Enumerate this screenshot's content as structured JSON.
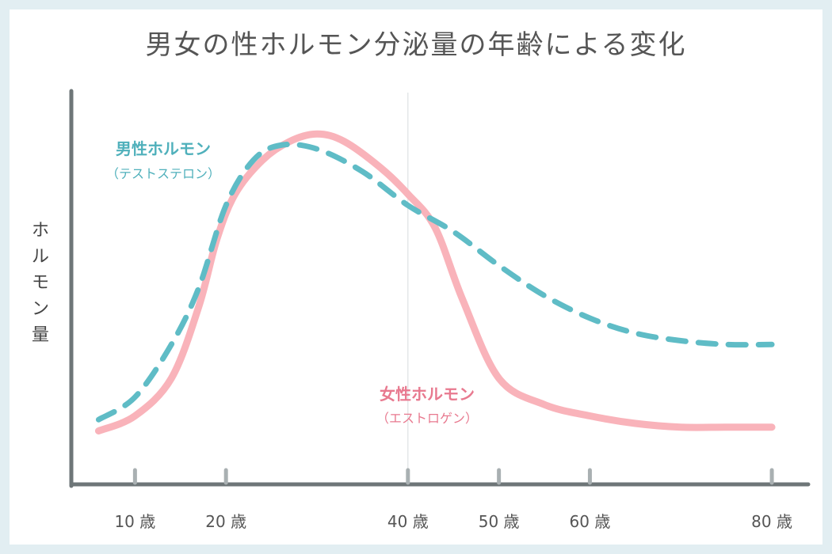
{
  "colors": {
    "background": "#e2eef2",
    "axis": "#6e7678",
    "tick": "#a9b0b2",
    "male": "#5fbcc6",
    "female": "#f9b3ba",
    "female_label": "#e8798f",
    "male_label": "#4fb0bb",
    "guide": "#d8dcdd"
  },
  "chart_data": {
    "type": "line",
    "title": "男女の性ホルモン分泌量の年齢による変化",
    "xlabel": "",
    "ylabel": "ホルモン量",
    "xlim": [
      3,
      84
    ],
    "ylim": [
      0,
      100
    ],
    "tick_values": [
      10,
      20,
      40,
      50,
      60,
      80
    ],
    "tick_labels": [
      "10 歳",
      "20 歳",
      "40 歳",
      "50 歳",
      "60 歳",
      "80 歳"
    ],
    "guide_x": 40,
    "grid": false,
    "series": [
      {
        "name": "男性ホルモン",
        "sub": "（テストステロン）",
        "style": "dashed",
        "x": [
          6,
          10,
          14,
          17,
          20,
          23,
          26,
          30,
          35,
          40,
          45,
          50,
          55,
          60,
          65,
          70,
          75,
          80
        ],
        "y": [
          13,
          19,
          33,
          48,
          70,
          82,
          86,
          85,
          79,
          70,
          63,
          54,
          46,
          40,
          36,
          34,
          33,
          33
        ]
      },
      {
        "name": "女性ホルモン",
        "sub": "（エストロゲン）",
        "style": "solid",
        "x": [
          6,
          10,
          14,
          17,
          19,
          21,
          24,
          27,
          30,
          33,
          37,
          40,
          43,
          46,
          50,
          55,
          60,
          65,
          70,
          75,
          80
        ],
        "y": [
          10,
          14,
          24,
          43,
          61,
          73,
          82,
          87,
          89,
          87,
          80,
          73,
          64,
          45,
          24,
          17,
          14,
          12,
          11,
          11,
          11
        ]
      }
    ]
  }
}
